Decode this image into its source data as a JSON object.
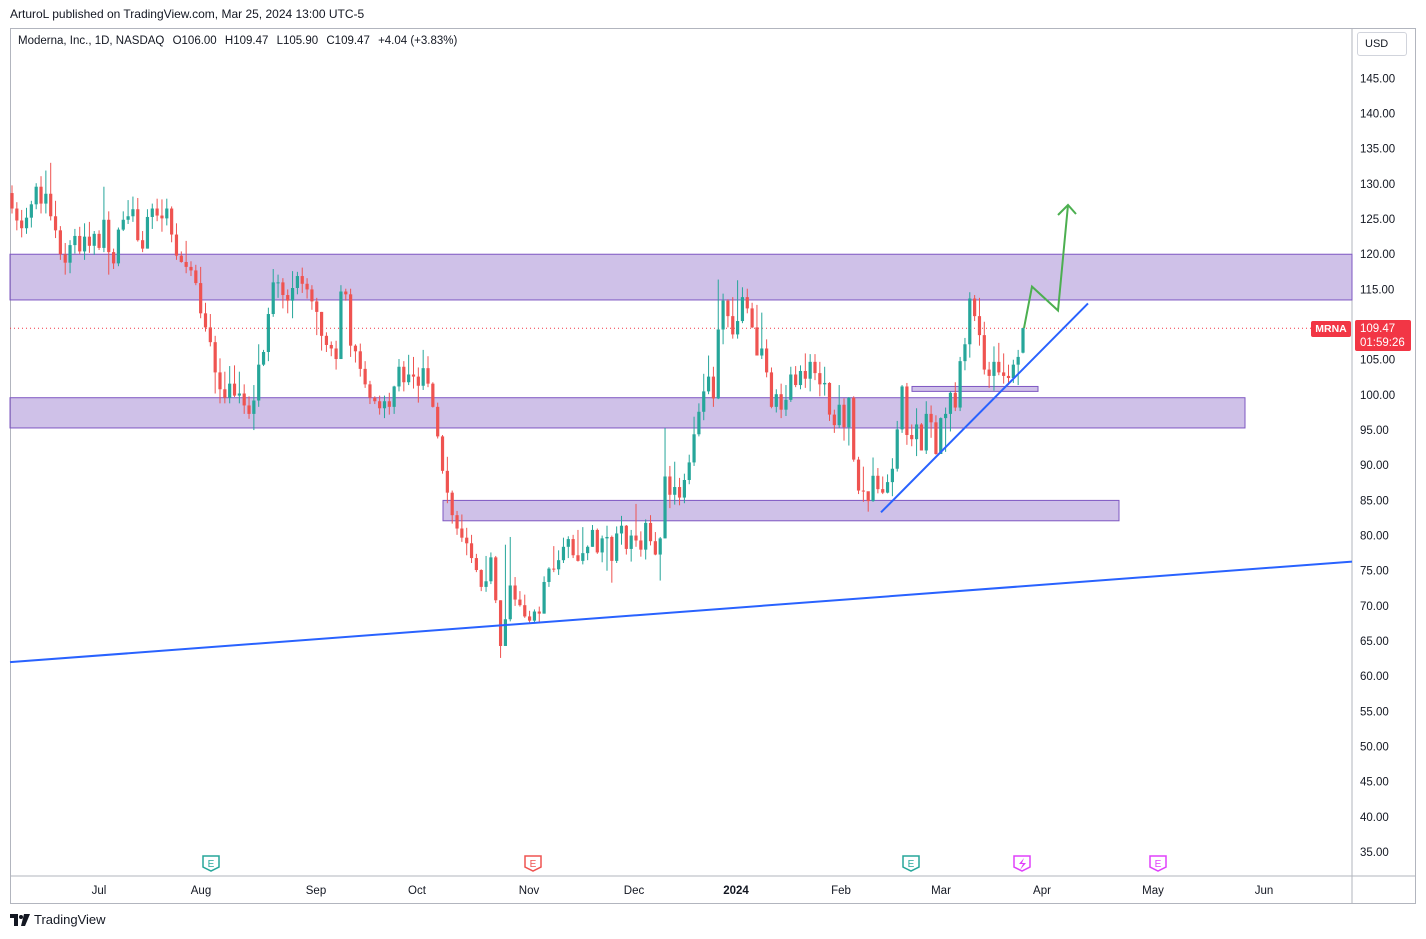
{
  "publisher": "ArturoL published on TradingView.com, Mar 25, 2024 13:00 UTC-5",
  "legend": {
    "title": "Moderna, Inc., 1D, NASDAQ",
    "open": "O106.00",
    "high": "H109.47",
    "low": "L105.90",
    "close": "C109.47",
    "change": "+4.04 (+3.83%)"
  },
  "currency": "USD",
  "last_price": {
    "symbol": "MRNA",
    "price": "109.47",
    "countdown": "01:59:26"
  },
  "footer": {
    "brand": "TradingView"
  },
  "colors": {
    "up": "#26a69a",
    "down": "#ef5350",
    "zone": "#9575cd",
    "trendline": "#2962ff",
    "arrow": "#4caf50",
    "last": "#f23645"
  },
  "events": [
    {
      "icon": "earnings-icon",
      "label": "E",
      "month": "Aug",
      "color": "#26a69a"
    },
    {
      "icon": "earnings-icon",
      "label": "E",
      "month": "Nov",
      "color": "#ef5350"
    },
    {
      "icon": "earnings-icon",
      "label": "E",
      "month": "Feb",
      "color": "#26a69a"
    },
    {
      "icon": "split-icon",
      "label": "",
      "month": "Mar",
      "color": "#e040fb"
    },
    {
      "icon": "earnings-icon",
      "label": "E",
      "month": "May",
      "color": "#e040fb"
    }
  ],
  "chart_data": {
    "type": "candlestick",
    "title": "Moderna, Inc., 1D, NASDAQ",
    "y_ticks": [
      "145.00",
      "140.00",
      "135.00",
      "130.00",
      "125.00",
      "120.00",
      "115.00",
      "110.00",
      "105.00",
      "100.00",
      "95.00",
      "90.00",
      "85.00",
      "80.00",
      "75.00",
      "70.00",
      "65.00",
      "60.00",
      "55.00",
      "50.00",
      "45.00",
      "40.00",
      "35.00"
    ],
    "x_ticks": [
      "Jul",
      "Aug",
      "Sep",
      "Oct",
      "Nov",
      "Dec",
      "2024",
      "Feb",
      "Mar",
      "Apr",
      "May",
      "Jun"
    ],
    "ylim": [
      31,
      150
    ],
    "last_price": 109.47,
    "candles": [
      [
        128.7,
        126.5,
        129.8,
        125.8
      ],
      [
        126.5,
        124.8,
        127.4,
        123.4
      ],
      [
        124.8,
        123.7,
        126.3,
        122.4
      ],
      [
        123.7,
        125.2,
        126.6,
        122.9
      ],
      [
        125.2,
        127.1,
        127.6,
        123.8
      ],
      [
        127.1,
        129.6,
        130.1,
        126.4
      ],
      [
        129.6,
        127.2,
        131.1,
        125.8
      ],
      [
        127.2,
        128.6,
        131.9,
        125.8
      ],
      [
        128.6,
        125.4,
        133.0,
        124.8
      ],
      [
        125.4,
        123.4,
        127.6,
        122.3
      ],
      [
        123.4,
        120.0,
        124.0,
        119.2
      ],
      [
        120.0,
        118.8,
        121.6,
        117.1
      ],
      [
        118.8,
        121.3,
        122.0,
        117.3
      ],
      [
        121.3,
        122.6,
        123.6,
        120.1
      ],
      [
        122.6,
        120.4,
        123.9,
        120.0
      ],
      [
        120.4,
        122.5,
        124.4,
        119.2
      ],
      [
        122.5,
        121.2,
        124.6,
        120.2
      ],
      [
        121.2,
        122.9,
        123.3,
        119.9
      ],
      [
        122.9,
        120.9,
        123.4,
        120.6
      ],
      [
        120.9,
        124.9,
        129.6,
        120.3
      ],
      [
        124.9,
        120.3,
        126.1,
        117.1
      ],
      [
        120.3,
        118.7,
        120.8,
        117.9
      ],
      [
        118.7,
        123.5,
        123.8,
        118.3
      ],
      [
        123.5,
        124.9,
        126.1,
        123.3
      ],
      [
        124.9,
        125.4,
        127.7,
        124.3
      ],
      [
        125.4,
        126.4,
        128.2,
        124.6
      ],
      [
        126.4,
        122.0,
        128.0,
        121.8
      ],
      [
        122.0,
        120.8,
        123.3,
        120.3
      ],
      [
        120.8,
        125.3,
        126.4,
        120.8
      ],
      [
        125.3,
        126.5,
        127.2,
        123.6
      ],
      [
        126.5,
        125.5,
        127.9,
        124.7
      ],
      [
        125.5,
        125.1,
        127.8,
        123.2
      ],
      [
        125.1,
        126.5,
        127.9,
        124.1
      ],
      [
        126.5,
        122.8,
        126.8,
        121.7
      ],
      [
        122.8,
        119.8,
        124.4,
        119.2
      ],
      [
        119.8,
        118.9,
        120.4,
        118.8
      ],
      [
        118.9,
        118.2,
        121.9,
        117.3
      ],
      [
        118.2,
        117.7,
        119.0,
        116.9
      ],
      [
        117.7,
        115.9,
        118.5,
        115.6
      ],
      [
        115.9,
        111.6,
        118.2,
        110.9
      ],
      [
        111.6,
        109.6,
        113.1,
        109.0
      ],
      [
        109.6,
        107.5,
        111.5,
        106.9
      ],
      [
        107.5,
        103.2,
        108.4,
        100.2
      ],
      [
        103.2,
        100.8,
        105.2,
        98.8
      ],
      [
        100.8,
        99.6,
        103.3,
        98.8
      ],
      [
        99.6,
        101.6,
        104.1,
        98.8
      ],
      [
        101.6,
        99.9,
        104.2,
        99.7
      ],
      [
        99.9,
        100.2,
        103.3,
        98.8
      ],
      [
        100.2,
        98.5,
        101.5,
        97.3
      ],
      [
        98.5,
        97.3,
        99.8,
        96.6
      ],
      [
        97.3,
        99.2,
        101.4,
        95.0
      ],
      [
        99.2,
        104.3,
        107.2,
        98.3
      ],
      [
        104.3,
        106.1,
        106.4,
        104.1
      ],
      [
        106.1,
        111.5,
        112.4,
        104.8
      ],
      [
        111.5,
        116.0,
        117.9,
        111.1
      ],
      [
        116.0,
        116.0,
        117.1,
        113.8
      ],
      [
        116.0,
        114.2,
        116.6,
        112.3
      ],
      [
        114.2,
        113.4,
        115.0,
        111.6
      ],
      [
        113.4,
        115.2,
        117.6,
        110.9
      ],
      [
        115.2,
        116.9,
        117.5,
        114.3
      ],
      [
        116.9,
        115.8,
        118.1,
        114.5
      ],
      [
        115.8,
        115.0,
        116.6,
        113.7
      ],
      [
        115.0,
        113.3,
        115.6,
        112.1
      ],
      [
        113.3,
        111.8,
        113.8,
        108.5
      ],
      [
        111.8,
        108.4,
        111.8,
        106.3
      ],
      [
        108.4,
        107.1,
        108.9,
        106.1
      ],
      [
        107.1,
        106.6,
        107.6,
        105.5
      ],
      [
        106.6,
        105.1,
        107.7,
        103.6
      ],
      [
        105.1,
        114.7,
        115.6,
        105.1
      ],
      [
        114.7,
        114.3,
        115.1,
        113.4
      ],
      [
        114.3,
        107.0,
        115.1,
        105.4
      ],
      [
        107.0,
        106.2,
        107.2,
        104.6
      ],
      [
        106.2,
        103.7,
        107.3,
        102.6
      ],
      [
        103.7,
        101.5,
        104.8,
        101.0
      ],
      [
        101.5,
        99.6,
        102.0,
        98.7
      ],
      [
        99.6,
        99.1,
        99.8,
        98.7
      ],
      [
        99.1,
        98.1,
        99.9,
        97.2
      ],
      [
        98.1,
        99.1,
        99.9,
        96.7
      ],
      [
        99.1,
        98.3,
        100.3,
        97.2
      ],
      [
        98.3,
        101.2,
        101.3,
        97.3
      ],
      [
        101.2,
        104.0,
        105.1,
        100.5
      ],
      [
        104.0,
        101.8,
        104.8,
        100.5
      ],
      [
        101.8,
        102.9,
        105.7,
        101.4
      ],
      [
        102.9,
        102.6,
        105.4,
        100.9
      ],
      [
        102.6,
        101.3,
        103.9,
        98.9
      ],
      [
        101.3,
        103.8,
        106.4,
        100.7
      ],
      [
        103.8,
        101.6,
        105.5,
        101.1
      ],
      [
        101.6,
        98.3,
        101.8,
        98.2
      ],
      [
        98.3,
        94.1,
        98.9,
        93.8
      ],
      [
        94.1,
        89.2,
        94.3,
        88.8
      ],
      [
        89.2,
        86.1,
        91.2,
        84.6
      ],
      [
        86.1,
        82.9,
        86.4,
        81.7
      ],
      [
        82.9,
        81.0,
        83.5,
        80.1
      ],
      [
        81.0,
        79.7,
        83.0,
        79.1
      ],
      [
        79.7,
        78.9,
        81.1,
        77.2
      ],
      [
        78.9,
        76.8,
        80.1,
        76.1
      ],
      [
        76.8,
        75.1,
        77.4,
        74.8
      ],
      [
        75.1,
        72.7,
        75.2,
        72.1
      ],
      [
        72.7,
        73.5,
        77.1,
        72.0
      ],
      [
        73.5,
        76.9,
        77.6,
        73.1
      ],
      [
        76.9,
        70.8,
        77.1,
        70.4
      ],
      [
        70.8,
        64.3,
        70.8,
        62.6
      ],
      [
        64.3,
        68.1,
        78.7,
        66.2
      ],
      [
        68.1,
        72.9,
        79.8,
        67.8
      ],
      [
        72.9,
        70.9,
        74.1,
        70.0
      ],
      [
        70.9,
        70.1,
        72.1,
        69.9
      ],
      [
        70.1,
        68.5,
        71.6,
        68.3
      ],
      [
        68.5,
        67.9,
        69.3,
        67.6
      ],
      [
        67.9,
        69.2,
        69.5,
        67.7
      ],
      [
        69.2,
        68.9,
        69.9,
        67.6
      ],
      [
        68.9,
        73.4,
        74.2,
        68.9
      ],
      [
        73.4,
        75.3,
        75.5,
        72.7
      ],
      [
        75.3,
        75.2,
        78.5,
        74.8
      ],
      [
        75.2,
        76.5,
        77.9,
        74.4
      ],
      [
        76.5,
        78.4,
        79.7,
        76.1
      ],
      [
        78.4,
        79.5,
        79.9,
        76.8
      ],
      [
        79.5,
        77.2,
        80.1,
        76.8
      ],
      [
        77.2,
        76.4,
        80.8,
        76.3
      ],
      [
        76.4,
        77.5,
        81.2,
        75.9
      ],
      [
        77.5,
        78.4,
        78.6,
        76.5
      ],
      [
        78.4,
        80.8,
        81.5,
        78.4
      ],
      [
        80.8,
        77.6,
        81.0,
        77.4
      ],
      [
        77.6,
        79.6,
        80.0,
        76.2
      ],
      [
        79.6,
        79.8,
        81.4,
        75.0
      ],
      [
        79.8,
        76.4,
        80.0,
        73.3
      ],
      [
        76.4,
        80.3,
        81.3,
        76.1
      ],
      [
        80.3,
        81.4,
        82.8,
        78.7
      ],
      [
        81.4,
        78.1,
        81.5,
        77.3
      ],
      [
        78.1,
        80.0,
        80.8,
        76.3
      ],
      [
        80.0,
        79.3,
        84.5,
        78.4
      ],
      [
        79.3,
        78.0,
        80.6,
        77.0
      ],
      [
        78.0,
        81.8,
        82.3,
        76.6
      ],
      [
        81.8,
        79.2,
        82.9,
        78.6
      ],
      [
        79.2,
        77.3,
        80.5,
        77.2
      ],
      [
        77.3,
        79.6,
        79.8,
        73.6
      ],
      [
        79.6,
        88.4,
        95.3,
        79.6
      ],
      [
        88.4,
        85.8,
        89.9,
        83.9
      ],
      [
        85.8,
        86.9,
        90.5,
        84.4
      ],
      [
        86.9,
        85.4,
        88.2,
        84.3
      ],
      [
        85.4,
        87.9,
        88.8,
        84.6
      ],
      [
        87.9,
        90.4,
        91.5,
        87.3
      ],
      [
        90.4,
        94.4,
        96.9,
        89.9
      ],
      [
        94.4,
        97.6,
        98.8,
        94.1
      ],
      [
        97.6,
        100.5,
        103.0,
        96.4
      ],
      [
        100.5,
        102.6,
        105.6,
        100.1
      ],
      [
        102.6,
        99.5,
        104.0,
        98.3
      ],
      [
        99.5,
        109.3,
        116.4,
        99.4
      ],
      [
        109.3,
        113.4,
        114.4,
        107.2
      ],
      [
        113.4,
        111.2,
        113.6,
        109.6
      ],
      [
        111.2,
        108.6,
        113.9,
        108.0
      ],
      [
        108.6,
        110.5,
        116.3,
        108.0
      ],
      [
        110.5,
        113.9,
        115.3,
        110.2
      ],
      [
        113.9,
        112.3,
        115.1,
        111.6
      ],
      [
        112.3,
        109.6,
        113.1,
        109.5
      ],
      [
        109.6,
        105.6,
        112.8,
        105.6
      ],
      [
        105.6,
        106.6,
        111.7,
        105.1
      ],
      [
        106.6,
        103.2,
        107.9,
        102.5
      ],
      [
        103.2,
        98.3,
        103.9,
        98.1
      ],
      [
        98.3,
        100.1,
        100.8,
        97.5
      ],
      [
        100.1,
        97.9,
        101.6,
        96.7
      ],
      [
        97.9,
        99.3,
        101.4,
        97.0
      ],
      [
        99.3,
        102.9,
        104.0,
        99.0
      ],
      [
        102.9,
        101.4,
        104.1,
        101.1
      ],
      [
        101.4,
        103.4,
        104.2,
        100.8
      ],
      [
        103.4,
        102.3,
        105.9,
        101.0
      ],
      [
        102.3,
        104.7,
        105.8,
        100.5
      ],
      [
        104.7,
        103.1,
        105.8,
        102.1
      ],
      [
        103.1,
        101.5,
        104.7,
        99.8
      ],
      [
        101.5,
        101.7,
        104.0,
        99.9
      ],
      [
        101.7,
        97.2,
        101.8,
        96.3
      ],
      [
        97.2,
        95.7,
        97.9,
        94.6
      ],
      [
        95.7,
        98.6,
        101.4,
        95.3
      ],
      [
        98.6,
        95.4,
        99.5,
        93.5
      ],
      [
        95.4,
        99.6,
        99.7,
        92.8
      ],
      [
        99.6,
        90.8,
        99.8,
        90.5
      ],
      [
        90.8,
        86.4,
        91.2,
        85.9
      ],
      [
        86.4,
        86.3,
        89.8,
        84.8
      ],
      [
        86.3,
        84.9,
        85.8,
        83.4
      ],
      [
        84.9,
        88.5,
        91.1,
        84.8
      ],
      [
        88.5,
        86.6,
        89.6,
        86.0
      ],
      [
        86.6,
        86.1,
        88.4,
        85.9
      ],
      [
        86.1,
        87.6,
        88.7,
        86.0
      ],
      [
        87.6,
        89.5,
        91.0,
        85.6
      ],
      [
        89.5,
        95.1,
        96.3,
        89.1
      ],
      [
        95.1,
        101.2,
        101.4,
        94.6
      ],
      [
        101.2,
        94.3,
        101.7,
        92.9
      ],
      [
        94.3,
        93.7,
        95.8,
        92.7
      ],
      [
        93.7,
        95.8,
        98.1,
        91.3
      ],
      [
        95.8,
        92.1,
        96.0,
        92.1
      ],
      [
        92.1,
        97.3,
        99.1,
        91.6
      ],
      [
        97.3,
        96.1,
        98.5,
        93.9
      ],
      [
        96.1,
        91.6,
        97.1,
        91.5
      ],
      [
        91.6,
        96.7,
        96.8,
        91.6
      ],
      [
        96.7,
        97.3,
        98.2,
        91.9
      ],
      [
        97.3,
        100.3,
        100.5,
        94.8
      ],
      [
        100.3,
        98.2,
        101.8,
        97.7
      ],
      [
        98.2,
        104.8,
        105.4,
        97.7
      ],
      [
        104.8,
        107.2,
        108.1,
        103.5
      ],
      [
        107.2,
        113.7,
        114.6,
        105.3
      ],
      [
        113.7,
        111.2,
        114.2,
        110.5
      ],
      [
        111.2,
        108.5,
        113.8,
        107.0
      ],
      [
        108.5,
        103.6,
        110.4,
        102.9
      ],
      [
        103.6,
        102.7,
        104.7,
        101.0
      ],
      [
        102.7,
        104.7,
        106.9,
        100.6
      ],
      [
        104.7,
        103.2,
        107.4,
        102.8
      ],
      [
        103.2,
        102.7,
        105.9,
        101.6
      ],
      [
        102.7,
        102.4,
        104.3,
        101.4
      ],
      [
        102.4,
        104.3,
        105.0,
        101.7
      ],
      [
        104.3,
        105.4,
        106.4,
        101.4
      ],
      [
        106.0,
        109.5,
        109.5,
        105.9
      ]
    ],
    "zones": [
      {
        "top": 120.0,
        "bottom": 113.5,
        "from": "start",
        "to": "axis"
      },
      {
        "top": 99.6,
        "bottom": 95.3,
        "from": "start",
        "to": "mid-Apr"
      },
      {
        "top": 85.0,
        "bottom": 82.1,
        "from": "mid-Oct",
        "to": "early-Apr"
      },
      {
        "top": 101.2,
        "bottom": 100.5,
        "from": "late-Feb",
        "to": "late-Mar"
      }
    ],
    "trendlines": [
      {
        "name": "long-term support",
        "p1": [
          0,
          62.0
        ],
        "p2": [
          1,
          76.3
        ]
      },
      {
        "name": "rising support",
        "p1": [
          0.62,
          83.3
        ],
        "p2": [
          0.8,
          113.0
        ]
      }
    ],
    "projection": [
      109.5,
      115.4,
      112.0,
      127.0
    ]
  }
}
